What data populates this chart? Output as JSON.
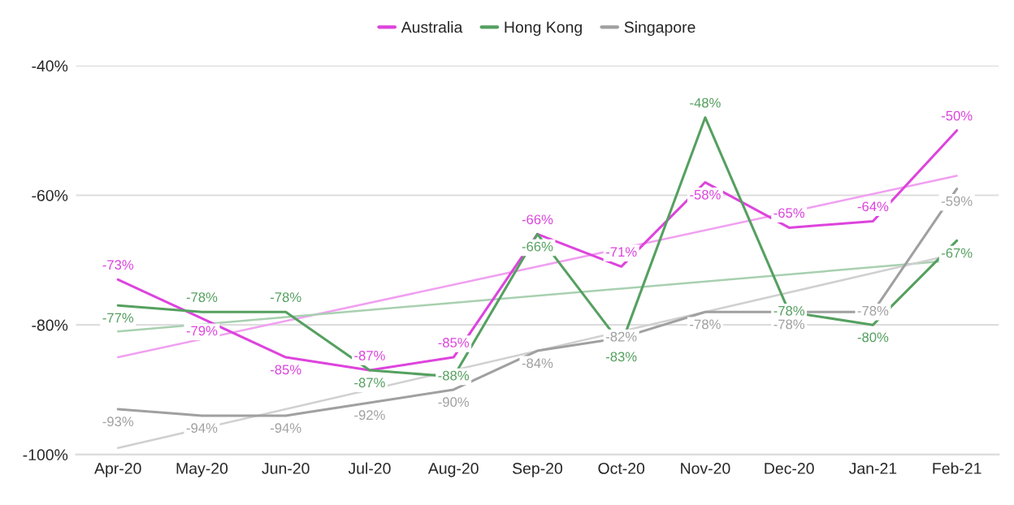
{
  "chart_data": {
    "type": "line",
    "categories": [
      "Apr-20",
      "May-20",
      "Jun-20",
      "Jul-20",
      "Aug-20",
      "Sep-20",
      "Oct-20",
      "Nov-20",
      "Dec-20",
      "Jan-21",
      "Feb-21"
    ],
    "series": [
      {
        "name": "Australia",
        "color": "#dd44dd",
        "values": [
          -73,
          -79,
          -85,
          -87,
          -85,
          -66,
          -71,
          -58,
          -65,
          -64,
          -50
        ],
        "value_labels": [
          "-73%",
          "-79%",
          "-85%",
          "-87%",
          "-85%",
          "-66%",
          "-71%",
          "-58%",
          "-65%",
          "-64%",
          "-50%"
        ]
      },
      {
        "name": "Hong Kong",
        "color": "#55a060",
        "values": [
          -77,
          -78,
          -78,
          -87,
          -88,
          -66,
          -83,
          -48,
          -78,
          -80,
          -67
        ],
        "value_labels": [
          "-77%",
          "-78%",
          "-78%",
          "-87%",
          "-88%",
          "-66%",
          "-83%",
          "-48%",
          "-78%",
          "-80%",
          "-67%"
        ]
      },
      {
        "name": "Singapore",
        "color": "#a0a0a0",
        "values": [
          -93,
          -94,
          -94,
          -92,
          -90,
          -84,
          -82,
          -78,
          -78,
          -78,
          -59
        ],
        "value_labels": [
          "-93%",
          "-94%",
          "-94%",
          "-92%",
          "-90%",
          "-84%",
          "-82%",
          "-78%",
          "-78%",
          "-78%",
          "-59%"
        ]
      },
      {
        "color": "#f0a0f0",
        "x": [
          "Apr-20",
          "Feb-21"
        ],
        "values": [
          -85,
          -57
        ]
      },
      {
        "color": "#a8d0b0",
        "x": [
          "Apr-20",
          "Feb-21"
        ],
        "values": [
          -81,
          -70
        ]
      },
      {
        "color": "#d0d0d0",
        "x": [
          "Apr-20",
          "Feb-21"
        ],
        "values": [
          -99,
          -69
        ]
      }
    ],
    "ylim": [
      -100,
      -40
    ],
    "yticks": [
      {
        "value": -100,
        "label": "-100%"
      },
      {
        "value": -80,
        "label": "-80%"
      },
      {
        "value": -60,
        "label": "-60%"
      },
      {
        "value": -40,
        "label": "-40%"
      }
    ],
    "grid": "y",
    "legend": "top",
    "line_style": "solid"
  }
}
